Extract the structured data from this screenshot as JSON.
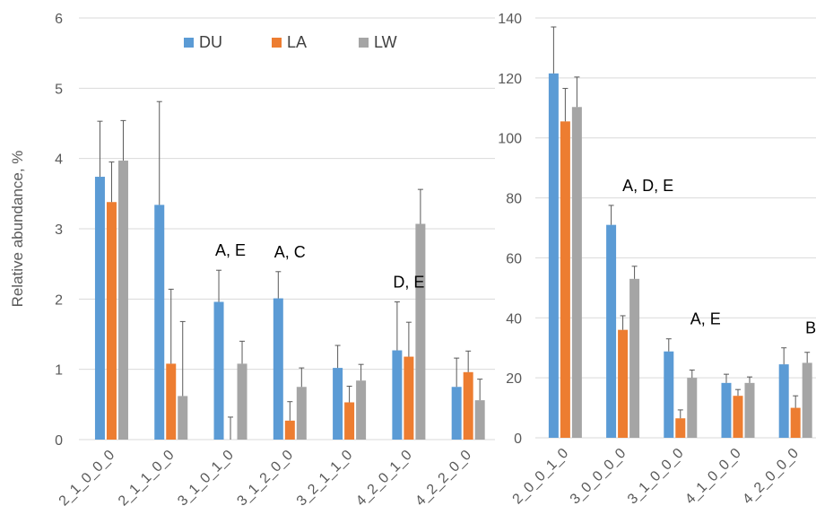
{
  "colors": {
    "DU": "#5b9bd5",
    "LA": "#ed7d31",
    "LW": "#a5a5a5"
  },
  "legend": {
    "items": [
      "DU",
      "LA",
      "LW"
    ],
    "placement": "top-center"
  },
  "chart_data": [
    {
      "type": "bar",
      "ylabel": "Relative abundance, %",
      "ylim": [
        0,
        6
      ],
      "yticks": [
        0,
        1,
        2,
        3,
        4,
        5,
        6
      ],
      "grid": true,
      "categories": [
        "2_1_0_0_0",
        "2_1_1_0_0",
        "3_1_0_1_0",
        "3_1_2_0_0",
        "3_2_1_1_0",
        "4_2_0_1_0",
        "4_2_2_0_0"
      ],
      "series": [
        {
          "name": "DU",
          "values": [
            3.74,
            3.34,
            1.96,
            2.01,
            1.02,
            1.27,
            0.75
          ],
          "errors": [
            0.79,
            1.47,
            0.45,
            0.38,
            0.32,
            0.69,
            0.41
          ]
        },
        {
          "name": "LA",
          "values": [
            3.38,
            1.08,
            0.0,
            0.27,
            0.53,
            1.18,
            0.96
          ],
          "errors": [
            0.57,
            1.06,
            0.32,
            0.27,
            0.23,
            0.49,
            0.3
          ]
        },
        {
          "name": "LW",
          "values": [
            3.97,
            0.62,
            1.08,
            0.75,
            0.84,
            3.07,
            0.56
          ],
          "errors": [
            0.57,
            1.06,
            0.32,
            0.27,
            0.23,
            0.49,
            0.3
          ]
        }
      ],
      "annotations": [
        {
          "category": "3_1_0_1_0",
          "text": "A, E"
        },
        {
          "category": "3_1_2_0_0",
          "text": "A, C"
        },
        {
          "category": "4_2_0_1_0",
          "text": "D, E"
        }
      ]
    },
    {
      "type": "bar",
      "ylabel": "",
      "ylim": [
        0,
        140
      ],
      "yticks": [
        0,
        20,
        40,
        60,
        80,
        100,
        120,
        140
      ],
      "grid": true,
      "categories": [
        "2_0_0_1_0",
        "3_0_0_0_0",
        "3_1_0_0_0",
        "4_1_0_0_0",
        "4_2_0_0_0"
      ],
      "series": [
        {
          "name": "DU",
          "values": [
            121.5,
            71.0,
            28.8,
            18.3,
            24.5
          ],
          "errors": [
            15.5,
            6.5,
            4.2,
            2.9,
            5.5
          ]
        },
        {
          "name": "LA",
          "values": [
            105.5,
            36.0,
            6.5,
            14.0,
            10.0
          ],
          "errors": [
            11.0,
            4.7,
            2.8,
            2.1,
            4.0
          ]
        },
        {
          "name": "LW",
          "values": [
            110.3,
            53.0,
            20.0,
            18.3,
            25.0
          ],
          "errors": [
            10.0,
            4.2,
            2.6,
            2.0,
            3.5
          ]
        }
      ],
      "annotations": [
        {
          "category": "3_0_0_0_0",
          "text": "A, D, E"
        },
        {
          "category": "3_1_0_0_0",
          "text": "A, E"
        },
        {
          "category": "4_2_0_0_0",
          "text": "B, E"
        }
      ]
    }
  ]
}
